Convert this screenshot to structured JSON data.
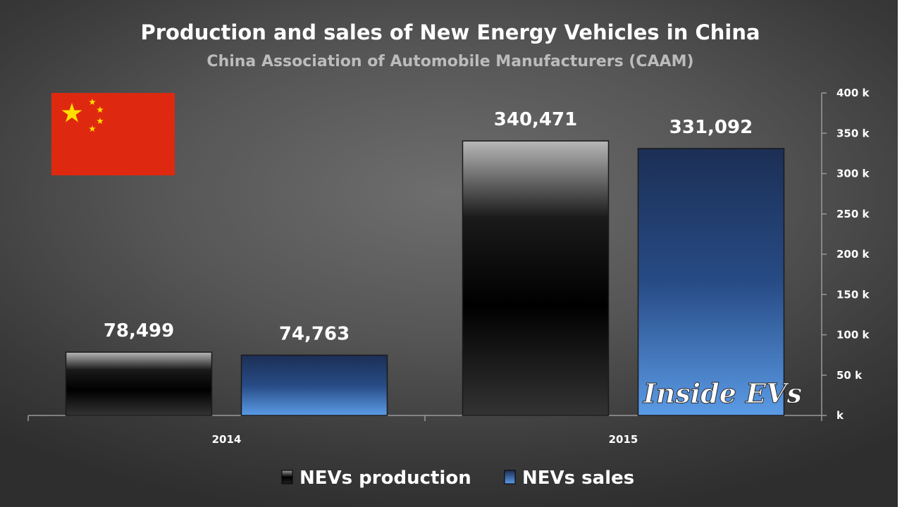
{
  "chart_data": {
    "type": "bar",
    "title": "Production and sales of New Energy Vehicles in China",
    "subtitle": "China Association of Automobile Manufacturers (CAAM)",
    "categories": [
      "2014",
      "2015"
    ],
    "series": [
      {
        "name": "NEVs production",
        "values": [
          78499,
          340471
        ],
        "labels": [
          "78,499",
          "340,471"
        ],
        "color": "#000000"
      },
      {
        "name": "NEVs sales",
        "values": [
          74763,
          331092
        ],
        "labels": [
          "74,763",
          "331,092"
        ],
        "color": "#3a78c8"
      }
    ],
    "yaxis": {
      "position": "right",
      "ylim": [
        0,
        400000
      ],
      "ticks": [
        0,
        50000,
        100000,
        150000,
        200000,
        250000,
        300000,
        350000,
        400000
      ],
      "tick_labels": [
        "k",
        "50 k",
        "100 k",
        "150 k",
        "200 k",
        "250 k",
        "300 k",
        "350 k",
        "400 k"
      ]
    },
    "grid": false,
    "legend": "bottom",
    "flag": "china-flag",
    "watermark": "Inside EVs"
  }
}
